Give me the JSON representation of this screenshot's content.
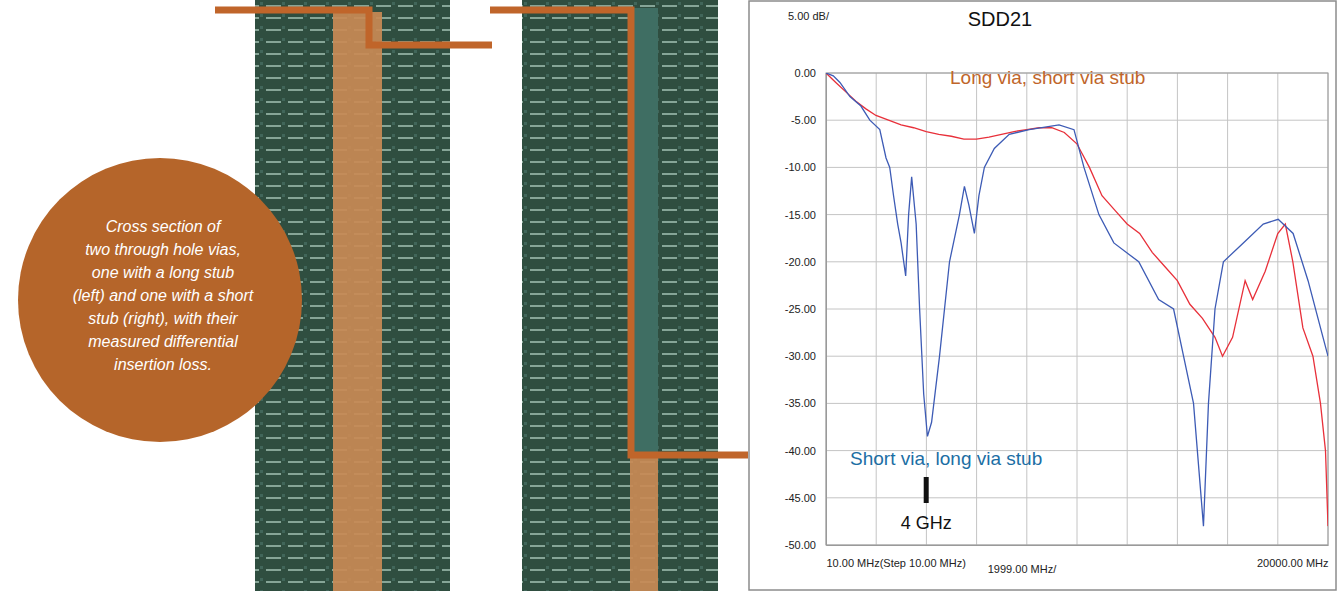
{
  "callout": {
    "lines": [
      "Cross section of",
      "two through hole vias,",
      "one with a long stub",
      "(left) and one with a short",
      "stub (right), with their",
      "measured differential",
      "insertion loss."
    ]
  },
  "chart_data": {
    "type": "line",
    "title": "SDD21",
    "ylabel": "5.00 dB/",
    "xlabel": "1999.00 MHz/",
    "xlim": [
      10,
      20000
    ],
    "ylim": [
      -50,
      0
    ],
    "xticks": [
      {
        "value": 10,
        "label": "10.00 MHz(Step 10.00 MHz)"
      },
      {
        "value": 20000,
        "label": "20000.00 MHz"
      }
    ],
    "xgrid": [
      10,
      2009,
      4008,
      6007,
      8006,
      10005,
      12004,
      14003,
      16002,
      18001,
      20000
    ],
    "yticks": [
      {
        "value": 0,
        "label": "0.00"
      },
      {
        "value": -5,
        "label": "-5.00"
      },
      {
        "value": -10,
        "label": "-10.00"
      },
      {
        "value": -15,
        "label": "-15.00"
      },
      {
        "value": -20,
        "label": "-20.00"
      },
      {
        "value": -25,
        "label": "-25.00"
      },
      {
        "value": -30,
        "label": "-30.00"
      },
      {
        "value": -35,
        "label": "-35.00"
      },
      {
        "value": -40,
        "label": "-40.00"
      },
      {
        "value": -45,
        "label": "-45.00"
      },
      {
        "value": -50,
        "label": "-50.00"
      }
    ],
    "grid": true,
    "series": [
      {
        "name": "Long via, short via stub",
        "color": "#e8303a",
        "x": [
          10,
          400,
          800,
          1200,
          1600,
          2000,
          2500,
          3000,
          3500,
          4000,
          4500,
          5000,
          5500,
          6000,
          6500,
          7000,
          7500,
          8000,
          8500,
          9000,
          9500,
          10000,
          10500,
          11000,
          11500,
          12000,
          12500,
          13000,
          13500,
          14000,
          14500,
          15000,
          15500,
          15800,
          16200,
          16700,
          17000,
          17500,
          18000,
          18300,
          18600,
          19000,
          19400,
          19700,
          19900,
          20000
        ],
        "values": [
          0,
          -1,
          -2,
          -3,
          -3.8,
          -4.5,
          -5,
          -5.5,
          -5.8,
          -6.2,
          -6.5,
          -6.7,
          -7,
          -7,
          -6.8,
          -6.5,
          -6.2,
          -6,
          -5.8,
          -5.8,
          -6.3,
          -7.5,
          -10,
          -13,
          -14.5,
          -16,
          -17,
          -19,
          -20.5,
          -22,
          -24.5,
          -26,
          -28,
          -30,
          -28,
          -22,
          -24,
          -21,
          -17,
          -16,
          -20,
          -27,
          -30,
          -35,
          -40,
          -48
        ]
      },
      {
        "name": "Short via, long via stub",
        "color": "#3d5bb5",
        "x": [
          10,
          300,
          565,
          962,
          1400,
          1755,
          2152,
          2400,
          2548,
          2700,
          2865,
          3000,
          3183,
          3300,
          3421,
          3600,
          3738,
          3900,
          4050,
          4214,
          4531,
          4928,
          5324,
          5522,
          5700,
          5919,
          6100,
          6316,
          6712,
          7307,
          8100,
          9290,
          9885,
          10282,
          10877,
          11472,
          12463,
          13256,
          13851,
          14248,
          14645,
          15041,
          15240,
          15500,
          15835,
          16628,
          17421,
          18016,
          18611,
          19206,
          19801,
          20000
        ],
        "values": [
          0,
          -0.3,
          -1,
          -2.5,
          -3.5,
          -5,
          -6,
          -9,
          -10,
          -13,
          -16,
          -18,
          -21.5,
          -15,
          -11,
          -16,
          -25,
          -34,
          -38.5,
          -37,
          -30,
          -20,
          -15,
          -12,
          -14,
          -17,
          -13,
          -10,
          -8,
          -6.5,
          -6,
          -5.5,
          -6,
          -10,
          -15,
          -18,
          -20,
          -24,
          -25,
          -30,
          -35,
          -48,
          -35,
          -25,
          -20,
          -18,
          -16,
          -15.5,
          -17,
          -22,
          -28,
          -30
        ]
      }
    ],
    "annotations": [
      {
        "text": "4 GHz",
        "x": 4000
      }
    ]
  }
}
